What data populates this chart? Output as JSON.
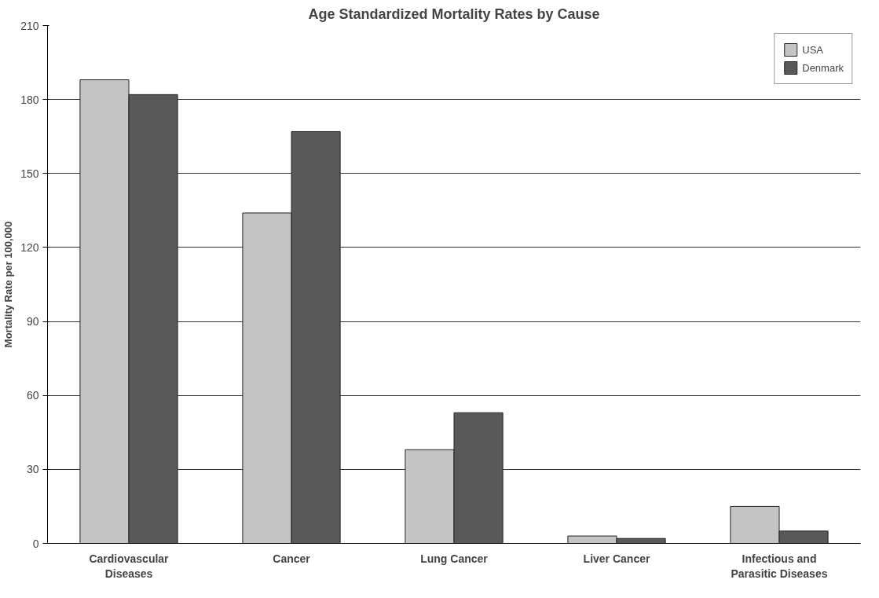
{
  "chart_data": {
    "type": "bar",
    "title": "Age Standardized Mortality Rates by Cause",
    "ylabel": "Mortality Rate per 100,000",
    "categories": [
      "Cardiovascular\nDiseases",
      "Cancer",
      "Lung Cancer",
      "Liver Cancer",
      "Infectious and\nParasitic Diseases"
    ],
    "series": [
      {
        "name": "USA",
        "color": "#c4c4c4",
        "values": [
          188,
          134,
          38,
          3,
          15
        ]
      },
      {
        "name": "Denmark",
        "color": "#595959",
        "values": [
          182,
          167,
          53,
          2,
          5
        ]
      }
    ],
    "ylim": [
      0,
      210
    ],
    "yticks": [
      0,
      30,
      60,
      90,
      120,
      150,
      180,
      210
    ],
    "grid": "y",
    "legend": "top right"
  }
}
